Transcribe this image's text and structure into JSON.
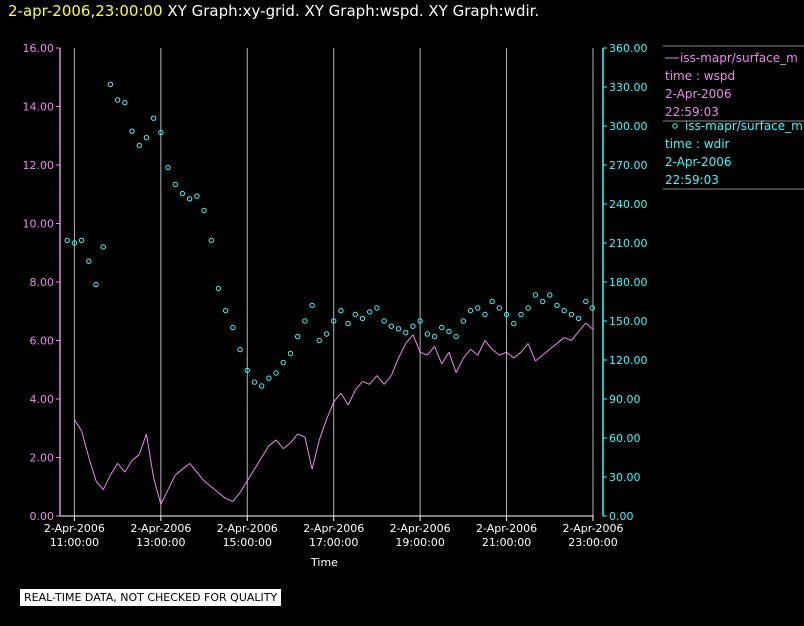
{
  "header": {
    "timestamp": "2-apr-2006,23:00:00",
    "graph_titles": "XY Graph:xy-grid.  XY Graph:wspd.  XY Graph:wdir."
  },
  "notice": "REAL-TIME DATA, NOT CHECKED FOR QUALITY",
  "colors": {
    "wspd": "#ee88ee",
    "wdir": "#33ffff",
    "grid": "#b4b4b4",
    "timestamp": "#ffff33"
  },
  "chart_data": {
    "type": "line",
    "xlabel": "Time",
    "x_range": [
      "2006-04-02T10:40:00",
      "2006-04-02T23:00:00"
    ],
    "x_ticks": [
      {
        "date": "2-Apr-2006",
        "time": "11:00:00",
        "t": "2006-04-02T11:00:00"
      },
      {
        "date": "2-Apr-2006",
        "time": "13:00:00",
        "t": "2006-04-02T13:00:00"
      },
      {
        "date": "2-Apr-2006",
        "time": "15:00:00",
        "t": "2006-04-02T15:00:00"
      },
      {
        "date": "2-Apr-2006",
        "time": "17:00:00",
        "t": "2006-04-02T17:00:00"
      },
      {
        "date": "2-Apr-2006",
        "time": "19:00:00",
        "t": "2006-04-02T19:00:00"
      },
      {
        "date": "2-Apr-2006",
        "time": "21:00:00",
        "t": "2006-04-02T21:00:00"
      },
      {
        "date": "2-Apr-2006",
        "time": "23:00:00",
        "t": "2006-04-02T23:00:00"
      }
    ],
    "left_axis": {
      "range": [
        0,
        16
      ],
      "ticks": [
        "0.00",
        "2.00",
        "4.00",
        "6.00",
        "8.00",
        "10.00",
        "12.00",
        "14.00",
        "16.00"
      ]
    },
    "right_axis": {
      "range": [
        0,
        360
      ],
      "ticks": [
        "0.00",
        "30.00",
        "60.00",
        "90.00",
        "120.00",
        "150.00",
        "180.00",
        "210.00",
        "240.00",
        "270.00",
        "300.00",
        "330.00",
        "360.00"
      ]
    },
    "grid": "vertical",
    "legend_position": "right",
    "legend": [
      {
        "series": "wspd",
        "name": "iss-mapr/surface_m",
        "variable": "time : wspd",
        "date": "2-Apr-2006",
        "time": "22:59:03"
      },
      {
        "series": "wdir",
        "name": "iss-mapr/surface_m",
        "variable": "time : wdir",
        "date": "2-Apr-2006",
        "time": "22:59:03"
      }
    ],
    "series": [
      {
        "key": "wspd",
        "style": "line",
        "axis": "left",
        "points": [
          [
            "11:00",
            3.3
          ],
          [
            "11:10",
            2.9
          ],
          [
            "11:20",
            2.0
          ],
          [
            "11:30",
            1.2
          ],
          [
            "11:40",
            0.9
          ],
          [
            "11:50",
            1.4
          ],
          [
            "12:00",
            1.8
          ],
          [
            "12:10",
            1.5
          ],
          [
            "12:20",
            1.9
          ],
          [
            "12:30",
            2.1
          ],
          [
            "12:40",
            2.8
          ],
          [
            "12:50",
            1.3
          ],
          [
            "13:00",
            0.4
          ],
          [
            "13:10",
            0.9
          ],
          [
            "13:20",
            1.4
          ],
          [
            "13:30",
            1.6
          ],
          [
            "13:40",
            1.8
          ],
          [
            "13:50",
            1.5
          ],
          [
            "14:00",
            1.2
          ],
          [
            "14:10",
            1.0
          ],
          [
            "14:20",
            0.8
          ],
          [
            "14:30",
            0.6
          ],
          [
            "14:40",
            0.5
          ],
          [
            "14:50",
            0.8
          ],
          [
            "15:00",
            1.2
          ],
          [
            "15:10",
            1.6
          ],
          [
            "15:20",
            2.0
          ],
          [
            "15:30",
            2.4
          ],
          [
            "15:40",
            2.6
          ],
          [
            "15:50",
            2.3
          ],
          [
            "16:00",
            2.5
          ],
          [
            "16:10",
            2.8
          ],
          [
            "16:20",
            2.7
          ],
          [
            "16:30",
            1.6
          ],
          [
            "16:40",
            2.6
          ],
          [
            "16:50",
            3.3
          ],
          [
            "17:00",
            3.9
          ],
          [
            "17:10",
            4.2
          ],
          [
            "17:20",
            3.8
          ],
          [
            "17:30",
            4.3
          ],
          [
            "17:40",
            4.6
          ],
          [
            "17:50",
            4.5
          ],
          [
            "18:00",
            4.8
          ],
          [
            "18:10",
            4.5
          ],
          [
            "18:20",
            4.8
          ],
          [
            "18:30",
            5.4
          ],
          [
            "18:40",
            5.9
          ],
          [
            "18:50",
            6.2
          ],
          [
            "19:00",
            5.6
          ],
          [
            "19:10",
            5.5
          ],
          [
            "19:20",
            5.8
          ],
          [
            "19:30",
            5.2
          ],
          [
            "19:40",
            5.6
          ],
          [
            "19:50",
            4.9
          ],
          [
            "20:00",
            5.4
          ],
          [
            "20:10",
            5.7
          ],
          [
            "20:20",
            5.5
          ],
          [
            "20:30",
            6.0
          ],
          [
            "20:40",
            5.7
          ],
          [
            "20:50",
            5.5
          ],
          [
            "21:00",
            5.6
          ],
          [
            "21:10",
            5.4
          ],
          [
            "21:20",
            5.6
          ],
          [
            "21:30",
            5.9
          ],
          [
            "21:40",
            5.3
          ],
          [
            "21:50",
            5.5
          ],
          [
            "22:00",
            5.7
          ],
          [
            "22:10",
            5.9
          ],
          [
            "22:20",
            6.1
          ],
          [
            "22:30",
            6.0
          ],
          [
            "22:40",
            6.3
          ],
          [
            "22:50",
            6.6
          ],
          [
            "22:59",
            6.4
          ]
        ]
      },
      {
        "key": "wdir",
        "style": "scatter",
        "axis": "right",
        "points": [
          [
            "10:50",
            212
          ],
          [
            "11:00",
            210
          ],
          [
            "11:10",
            212
          ],
          [
            "11:20",
            196
          ],
          [
            "11:30",
            178
          ],
          [
            "11:40",
            207
          ],
          [
            "11:50",
            332
          ],
          [
            "12:00",
            320
          ],
          [
            "12:10",
            318
          ],
          [
            "12:20",
            296
          ],
          [
            "12:30",
            285
          ],
          [
            "12:40",
            291
          ],
          [
            "12:50",
            306
          ],
          [
            "13:00",
            295
          ],
          [
            "13:10",
            268
          ],
          [
            "13:20",
            255
          ],
          [
            "13:30",
            248
          ],
          [
            "13:40",
            244
          ],
          [
            "13:50",
            246
          ],
          [
            "14:00",
            235
          ],
          [
            "14:10",
            212
          ],
          [
            "14:20",
            175
          ],
          [
            "14:30",
            158
          ],
          [
            "14:40",
            145
          ],
          [
            "14:50",
            128
          ],
          [
            "15:00",
            112
          ],
          [
            "15:10",
            103
          ],
          [
            "15:20",
            100
          ],
          [
            "15:30",
            106
          ],
          [
            "15:40",
            110
          ],
          [
            "15:50",
            118
          ],
          [
            "16:00",
            125
          ],
          [
            "16:10",
            138
          ],
          [
            "16:20",
            150
          ],
          [
            "16:30",
            162
          ],
          [
            "16:40",
            135
          ],
          [
            "16:50",
            140
          ],
          [
            "17:00",
            150
          ],
          [
            "17:10",
            158
          ],
          [
            "17:20",
            148
          ],
          [
            "17:30",
            155
          ],
          [
            "17:40",
            152
          ],
          [
            "17:50",
            157
          ],
          [
            "18:00",
            160
          ],
          [
            "18:10",
            150
          ],
          [
            "18:20",
            146
          ],
          [
            "18:30",
            144
          ],
          [
            "18:40",
            141
          ],
          [
            "18:50",
            146
          ],
          [
            "19:00",
            150
          ],
          [
            "19:10",
            140
          ],
          [
            "19:20",
            138
          ],
          [
            "19:30",
            145
          ],
          [
            "19:40",
            142
          ],
          [
            "19:50",
            138
          ],
          [
            "20:00",
            150
          ],
          [
            "20:10",
            158
          ],
          [
            "20:20",
            160
          ],
          [
            "20:30",
            155
          ],
          [
            "20:40",
            165
          ],
          [
            "20:50",
            160
          ],
          [
            "21:00",
            155
          ],
          [
            "21:10",
            148
          ],
          [
            "21:20",
            155
          ],
          [
            "21:30",
            160
          ],
          [
            "21:40",
            170
          ],
          [
            "21:50",
            165
          ],
          [
            "22:00",
            170
          ],
          [
            "22:10",
            162
          ],
          [
            "22:20",
            158
          ],
          [
            "22:30",
            155
          ],
          [
            "22:40",
            152
          ],
          [
            "22:50",
            165
          ],
          [
            "22:59",
            160
          ]
        ]
      }
    ]
  }
}
